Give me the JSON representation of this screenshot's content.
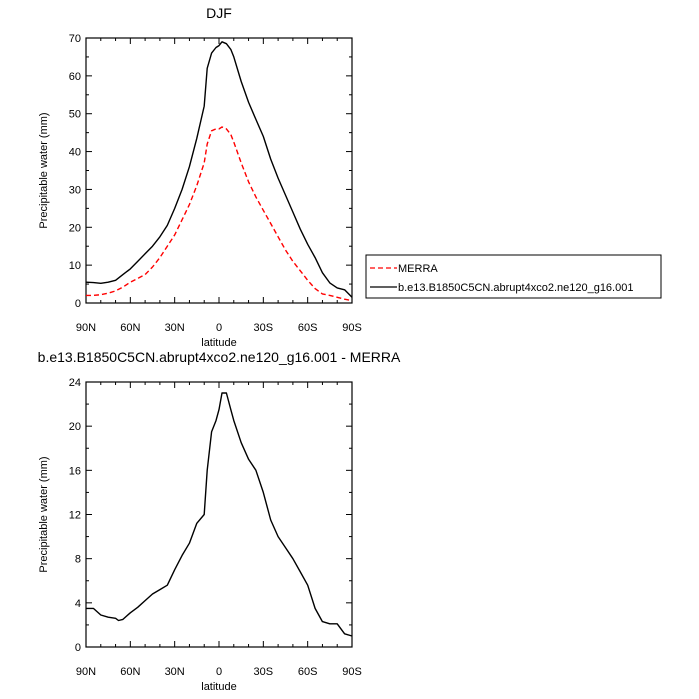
{
  "chart_data": [
    {
      "type": "line",
      "title": "DJF",
      "xlabel": "latitude",
      "ylabel": "Precipitable water (mm)",
      "xlim": [
        90,
        -90
      ],
      "ylim": [
        0,
        70
      ],
      "x_ticks": [
        90,
        60,
        30,
        0,
        -30,
        -60,
        -90
      ],
      "x_tick_labels": [
        "90N",
        "60N",
        "30N",
        "0",
        "30S",
        "60S",
        "90S"
      ],
      "y_ticks": [
        0,
        10,
        20,
        30,
        40,
        50,
        60,
        70
      ],
      "y_tick_labels": [
        "0",
        "10",
        "20",
        "30",
        "40",
        "50",
        "60",
        "70"
      ],
      "legend": "outside-right",
      "series": [
        {
          "name": "MERRA",
          "color": "#ff0000",
          "dash": "dashed",
          "x": [
            90,
            85,
            80,
            75,
            70,
            65,
            60,
            55,
            50,
            45,
            40,
            35,
            30,
            25,
            20,
            15,
            10,
            8,
            5,
            2,
            0,
            -2,
            -5,
            -8,
            -10,
            -15,
            -20,
            -25,
            -30,
            -35,
            -40,
            -45,
            -50,
            -55,
            -60,
            -65,
            -70,
            -75,
            -80,
            -85,
            -90
          ],
          "y": [
            2,
            2,
            2.2,
            2.6,
            3.2,
            4.2,
            5.5,
            6.5,
            7.5,
            9.5,
            12,
            15,
            18,
            22,
            26,
            31,
            37,
            42,
            45.5,
            46,
            46,
            46.5,
            46,
            44.5,
            42.5,
            37,
            32,
            28,
            24.5,
            21,
            17.5,
            14,
            11,
            8.5,
            6,
            3.8,
            2.4,
            2,
            1.5,
            1,
            0.6
          ]
        },
        {
          "name": "b.e13.B1850C5CN.abrupt4xco2.ne120_g16.001",
          "color": "#000000",
          "dash": "solid",
          "x": [
            90,
            85,
            80,
            75,
            70,
            65,
            60,
            55,
            50,
            45,
            40,
            35,
            30,
            25,
            20,
            15,
            10,
            8,
            5,
            2,
            0,
            -2,
            -5,
            -8,
            -10,
            -15,
            -20,
            -25,
            -30,
            -35,
            -40,
            -45,
            -50,
            -55,
            -60,
            -65,
            -70,
            -75,
            -80,
            -85,
            -90
          ],
          "y": [
            5.5,
            5.4,
            5.2,
            5.5,
            6,
            7.5,
            9,
            11,
            13,
            15,
            17.5,
            20.5,
            25,
            30,
            36,
            43.5,
            52,
            62,
            66,
            67.5,
            68,
            69,
            68.5,
            67,
            65,
            58.5,
            53,
            48.5,
            44,
            38,
            33,
            28.5,
            24,
            19.5,
            15.5,
            12,
            8,
            5.3,
            4,
            3.5,
            1.5
          ]
        }
      ]
    },
    {
      "type": "line",
      "title": "b.e13.B1850C5CN.abrupt4xco2.ne120_g16.001 - MERRA",
      "xlabel": "latitude",
      "ylabel": "Precipitable water (mm)",
      "xlim": [
        90,
        -90
      ],
      "ylim": [
        0,
        24
      ],
      "x_ticks": [
        90,
        60,
        30,
        0,
        -30,
        -60,
        -90
      ],
      "x_tick_labels": [
        "90N",
        "60N",
        "30N",
        "0",
        "30S",
        "60S",
        "90S"
      ],
      "y_ticks": [
        0,
        4,
        8,
        12,
        16,
        20,
        24
      ],
      "y_tick_labels": [
        "0",
        "4",
        "8",
        "12",
        "16",
        "20",
        "24"
      ],
      "series": [
        {
          "color": "#000000",
          "dash": "solid",
          "x": [
            90,
            85,
            80,
            75,
            70,
            68,
            65,
            60,
            55,
            50,
            45,
            40,
            35,
            30,
            25,
            20,
            15,
            10,
            8,
            5,
            2,
            0,
            -2,
            -5,
            -8,
            -10,
            -15,
            -20,
            -25,
            -30,
            -35,
            -40,
            -45,
            -50,
            -55,
            -60,
            -65,
            -70,
            -75,
            -80,
            -85,
            -90
          ],
          "y": [
            3.5,
            3.5,
            2.9,
            2.7,
            2.6,
            2.4,
            2.5,
            3.1,
            3.6,
            4.2,
            4.8,
            5.2,
            5.6,
            7.0,
            8.3,
            9.4,
            11.2,
            12.0,
            16.0,
            19.5,
            20.5,
            21.5,
            23.0,
            23.0,
            21.5,
            20.5,
            18.5,
            17.0,
            16.0,
            14.0,
            11.5,
            10.0,
            9.0,
            8.0,
            6.8,
            5.6,
            3.5,
            2.3,
            2.1,
            2.1,
            1.2,
            1.0
          ]
        }
      ]
    }
  ]
}
